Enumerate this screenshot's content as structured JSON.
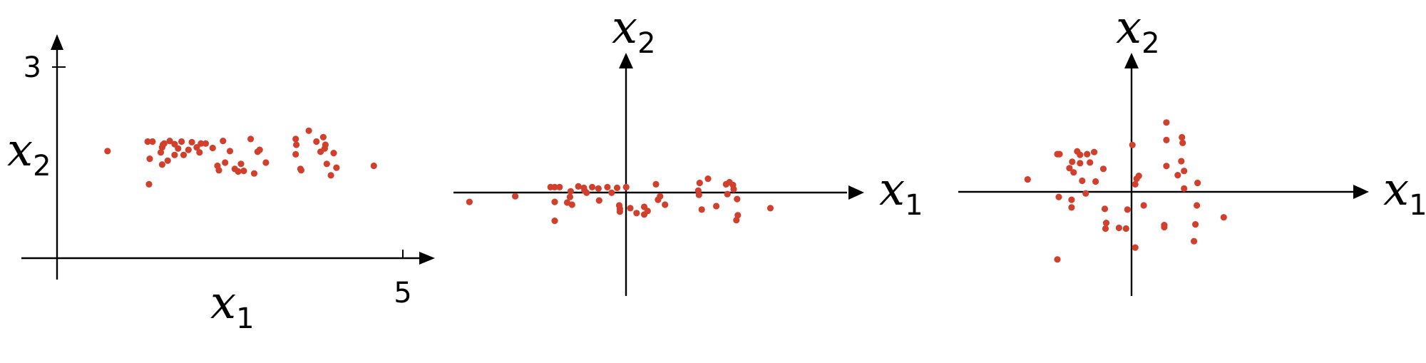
{
  "colors": {
    "point": "#d1402c",
    "axis": "#000000"
  },
  "chart_data": [
    {
      "type": "scatter",
      "title": "",
      "xlabel": {
        "main": "x",
        "sub": "1"
      },
      "ylabel": {
        "main": "x",
        "sub": "2"
      },
      "xlim": [
        0,
        5
      ],
      "ylim": [
        0,
        3
      ],
      "x_ticks": [
        {
          "value": 5,
          "label": "5"
        }
      ],
      "y_ticks": [
        {
          "value": 3,
          "label": "3"
        }
      ],
      "grid": false,
      "series": [
        {
          "points": [
            [
              0.73,
              1.68
            ],
            [
              1.31,
              1.83
            ],
            [
              1.38,
              1.83
            ],
            [
              1.33,
              1.16
            ],
            [
              1.34,
              1.56
            ],
            [
              1.5,
              1.66
            ],
            [
              1.52,
              1.74
            ],
            [
              1.53,
              1.78
            ],
            [
              1.55,
              1.8
            ],
            [
              1.52,
              1.47
            ],
            [
              1.6,
              1.53
            ],
            [
              1.63,
              1.84
            ],
            [
              1.7,
              1.79
            ],
            [
              1.75,
              1.72
            ],
            [
              1.8,
              1.83
            ],
            [
              1.83,
              1.62
            ],
            [
              1.9,
              1.7
            ],
            [
              1.95,
              1.82
            ],
            [
              2.02,
              1.74
            ],
            [
              2.06,
              1.66
            ],
            [
              2.08,
              1.8
            ],
            [
              2.15,
              1.8
            ],
            [
              2.25,
              1.73
            ],
            [
              2.32,
              1.45
            ],
            [
              2.34,
              1.38
            ],
            [
              2.4,
              1.84
            ],
            [
              2.43,
              1.5
            ],
            [
              2.5,
              1.68
            ],
            [
              2.57,
              1.4
            ],
            [
              2.62,
              1.36
            ],
            [
              2.66,
              1.48
            ],
            [
              2.7,
              1.37
            ],
            [
              2.8,
              1.87
            ],
            [
              2.85,
              1.33
            ],
            [
              2.9,
              1.67
            ],
            [
              2.93,
              1.7
            ],
            [
              3.02,
              1.5
            ],
            [
              3.45,
              1.87
            ],
            [
              3.46,
              1.78
            ],
            [
              3.45,
              1.63
            ],
            [
              3.52,
              1.4
            ],
            [
              3.53,
              1.38
            ],
            [
              3.64,
              2.0
            ],
            [
              3.75,
              1.83
            ],
            [
              3.85,
              1.9
            ],
            [
              3.88,
              1.78
            ],
            [
              3.87,
              1.72
            ],
            [
              3.9,
              1.48
            ],
            [
              3.96,
              1.3
            ],
            [
              4.0,
              1.65
            ],
            [
              4.04,
              1.42
            ],
            [
              4.58,
              1.45
            ],
            [
              3.81,
              1.67
            ],
            [
              1.7,
              1.62
            ]
          ]
        }
      ]
    },
    {
      "type": "scatter",
      "title": "",
      "xlabel": {
        "main": "x",
        "sub": "1"
      },
      "ylabel": {
        "main": "x",
        "sub": "2"
      },
      "xlim": [
        -2.4,
        3.45
      ],
      "ylim": [
        -1.4,
        1.85
      ],
      "x_ticks": [],
      "y_ticks": [],
      "grid": false,
      "series": [
        {
          "points": [
            [
              -2.17,
              -0.06
            ],
            [
              -1.51,
              0.02
            ],
            [
              -1.0,
              0.15
            ],
            [
              -0.94,
              0.15
            ],
            [
              -0.87,
              0.15
            ],
            [
              -0.94,
              -0.06
            ],
            [
              -0.71,
              0.09
            ],
            [
              -0.72,
              0.01
            ],
            [
              -0.76,
              -0.07
            ],
            [
              -0.69,
              -0.1
            ],
            [
              -0.6,
              0.16
            ],
            [
              -0.51,
              0.1
            ],
            [
              -0.48,
              0.07
            ],
            [
              -0.52,
              0.14
            ],
            [
              -0.4,
              0.15
            ],
            [
              -0.31,
              0.13
            ],
            [
              -0.3,
              -0.04
            ],
            [
              -0.18,
              0.15
            ],
            [
              -0.12,
              0.07
            ],
            [
              -0.04,
              0.14
            ],
            [
              0.09,
              0.15
            ],
            [
              0.0,
              -0.2
            ],
            [
              -0.01,
              -0.11
            ],
            [
              0.0,
              -0.16
            ],
            [
              0.15,
              -0.15
            ],
            [
              0.24,
              -0.22
            ],
            [
              0.35,
              -0.24
            ],
            [
              0.35,
              -0.13
            ],
            [
              0.4,
              -0.19
            ],
            [
              0.52,
              0.19
            ],
            [
              0.55,
              -0.03
            ],
            [
              0.58,
              0.02
            ],
            [
              0.65,
              -0.1
            ],
            [
              1.14,
              0.04
            ],
            [
              1.15,
              0.21
            ],
            [
              1.13,
              0.1
            ],
            [
              1.18,
              -0.17
            ],
            [
              1.27,
              0.27
            ],
            [
              1.39,
              -0.12
            ],
            [
              1.53,
              0.19
            ],
            [
              1.58,
              0.22
            ],
            [
              1.55,
              0.05
            ],
            [
              1.63,
              0.18
            ],
            [
              1.69,
              -0.02
            ],
            [
              1.7,
              -0.25
            ],
            [
              2.17,
              -0.15
            ],
            [
              1.64,
              0.12
            ],
            [
              -0.94,
              -0.33
            ],
            [
              1.68,
              -0.32
            ]
          ]
        }
      ]
    },
    {
      "type": "scatter",
      "title": "",
      "xlabel": {
        "main": "x",
        "sub": "1"
      },
      "ylabel": {
        "main": "x",
        "sub": "2"
      },
      "xlim": [
        -2.4,
        3.2
      ],
      "ylim": [
        -1.4,
        1.85
      ],
      "x_ticks": [],
      "y_ticks": [],
      "grid": false,
      "series": [
        {
          "points": [
            [
              -1.42,
              0.26
            ],
            [
              -1.0,
              0.62
            ],
            [
              -0.97,
              0.62
            ],
            [
              -0.72,
              0.66
            ],
            [
              -0.68,
              0.61
            ],
            [
              -0.58,
              0.62
            ],
            [
              -0.48,
              0.65
            ],
            [
              -0.79,
              0.51
            ],
            [
              -0.68,
              0.49
            ],
            [
              -0.54,
              0.5
            ],
            [
              -0.83,
              0.42
            ],
            [
              -0.77,
              0.36
            ],
            [
              -0.65,
              0.24
            ],
            [
              -0.46,
              0.23
            ],
            [
              -0.98,
              0.01
            ],
            [
              -0.8,
              -0.14
            ],
            [
              -0.8,
              -0.03
            ],
            [
              -0.6,
              0.06
            ],
            [
              -0.35,
              0.41
            ],
            [
              0.06,
              0.75
            ],
            [
              0.12,
              0.27
            ],
            [
              0.15,
              0.31
            ],
            [
              0.1,
              0.19
            ],
            [
              0.54,
              1.07
            ],
            [
              0.54,
              0.45
            ],
            [
              0.54,
              0.82
            ],
            [
              0.76,
              0.86
            ],
            [
              0.77,
              0.78
            ],
            [
              0.7,
              0.32
            ],
            [
              0.79,
              0.38
            ],
            [
              0.98,
              0.21
            ],
            [
              0.79,
              0.13
            ],
            [
              0.97,
              -0.11
            ],
            [
              0.22,
              -0.11
            ],
            [
              -0.33,
              -0.16
            ],
            [
              -0.31,
              -0.36
            ],
            [
              -0.32,
              -0.44
            ],
            [
              -0.13,
              -0.43
            ],
            [
              -0.03,
              -0.44
            ],
            [
              -0.01,
              -0.17
            ],
            [
              0.1,
              -0.71
            ],
            [
              0.51,
              -0.39
            ],
            [
              0.95,
              -0.38
            ],
            [
              1.35,
              -0.28
            ],
            [
              0.93,
              -0.62
            ],
            [
              -1.0,
              -0.88
            ],
            [
              0.51,
              -0.42
            ],
            [
              0.75,
              0.52
            ]
          ]
        }
      ]
    }
  ]
}
